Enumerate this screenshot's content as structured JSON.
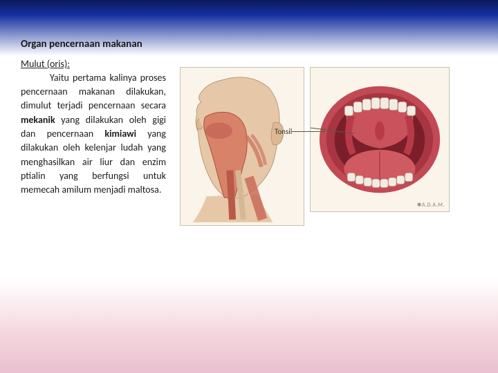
{
  "title": "Organ pencernaan makanan",
  "subtitle": "Mulut (oris):",
  "body_html": "Yaitu pertama kalinya proses pencernaan makanan dilakukan, dimulut terjadi pencernaan secara <b>mekanik</b> yang dilakukan oleh gigi dan pencernaan <b>kimiawi</b> yang dilakukan oleh kelenjar ludah yang menghasilkan air liur dan enzim ptialin yang berfungsi untuk memecah amilum menjadi maltosa.",
  "illustrations": {
    "head": {
      "bg": "#faf4ea",
      "skin": "#e6c8a8",
      "muscle": "#c96b5a",
      "throat": "#d9826a"
    },
    "mouth": {
      "bg": "#faf4ea",
      "lips": "#c24a55",
      "inner": "#b83a48",
      "teeth": "#f2ede3",
      "tongue": "#cf5a62",
      "label": "Tonsil"
    },
    "watermark": "✱A.D.A.M."
  }
}
